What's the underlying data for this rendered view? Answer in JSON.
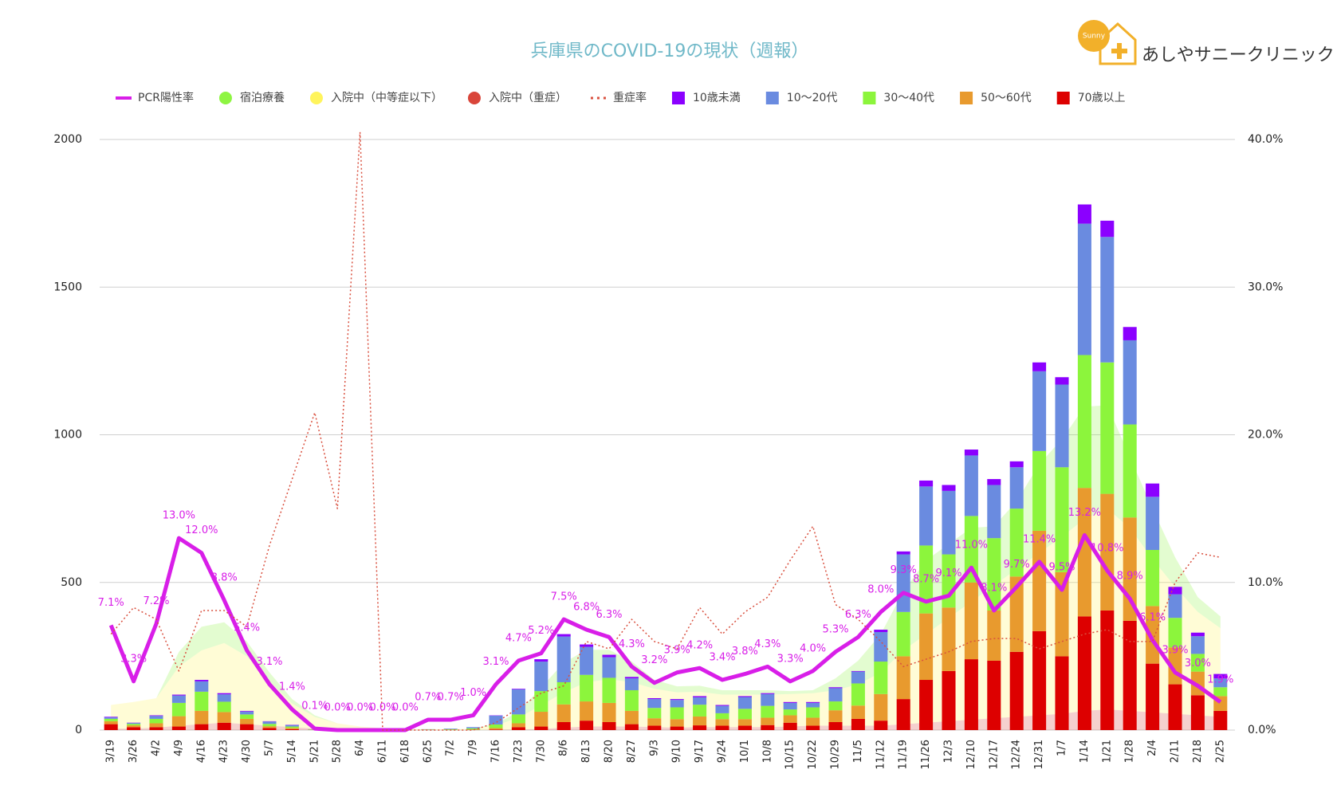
{
  "header": {
    "logo_text": "あしやサニークリニック",
    "logo_mark": "Sunny"
  },
  "chart_data": {
    "type": "combo",
    "title": "兵庫県のCOVID-19の現状（週報）",
    "categories": [
      "3/19",
      "3/26",
      "4/2",
      "4/9",
      "4/16",
      "4/23",
      "4/30",
      "5/7",
      "5/14",
      "5/21",
      "5/28",
      "6/4",
      "6/11",
      "6/18",
      "6/25",
      "7/2",
      "7/9",
      "7/16",
      "7/23",
      "7/30",
      "8/6",
      "8/13",
      "8/20",
      "8/27",
      "9/3",
      "9/10",
      "9/17",
      "9/24",
      "10/1",
      "10/8",
      "10/15",
      "10/22",
      "10/29",
      "11/5",
      "11/12",
      "11/19",
      "11/26",
      "12/3",
      "12/10",
      "12/17",
      "12/24",
      "12/31",
      "1/7",
      "1/14",
      "1/21",
      "1/28",
      "2/4",
      "2/11",
      "2/18",
      "2/25"
    ],
    "ylim": [
      0,
      2000
    ],
    "yticks": [
      0,
      500,
      1000,
      1500,
      2000
    ],
    "y2lim": [
      0,
      40
    ],
    "y2ticks": [
      {
        "value": 0,
        "label": "0.0%"
      },
      {
        "value": 10,
        "label": "10.0%"
      },
      {
        "value": 20,
        "label": "20.0%"
      },
      {
        "value": 30,
        "label": "30.0%"
      },
      {
        "value": 40,
        "label": "40.0%"
      }
    ],
    "grid": true,
    "legend": "top",
    "series": [
      {
        "name": "PCR陽性率",
        "kind": "line",
        "axis": "y2",
        "color": "#d81ee8",
        "values": [
          7.1,
          3.3,
          7.2,
          13.0,
          12.0,
          8.8,
          5.4,
          3.1,
          1.4,
          0.1,
          0.0,
          0.0,
          0.0,
          0.0,
          0.7,
          0.7,
          1.0,
          3.1,
          4.7,
          5.2,
          7.5,
          6.8,
          6.3,
          4.3,
          3.2,
          3.9,
          4.2,
          3.4,
          3.8,
          4.3,
          3.3,
          4.0,
          5.3,
          6.3,
          8.0,
          9.3,
          8.7,
          9.1,
          11.0,
          8.1,
          9.7,
          11.4,
          9.5,
          13.2,
          10.8,
          8.9,
          6.1,
          3.9,
          3.0,
          1.9
        ],
        "value_labels": [
          "7.1%",
          "3.3%",
          "7.2%",
          "13.0%",
          "12.0%",
          "8.8%",
          "5.4%",
          "3.1%",
          "1.4%",
          "0.1%",
          "0.0%",
          "0.0%",
          "0.0%",
          "0.0%",
          "0.7%",
          "0.7%",
          "1.0%",
          "3.1%",
          "4.7%",
          "5.2%",
          "7.5%",
          "6.8%",
          "6.3%",
          "4.3%",
          "3.2%",
          "3.9%",
          "4.2%",
          "3.4%",
          "3.8%",
          "4.3%",
          "3.3%",
          "4.0%",
          "5.3%",
          "6.3%",
          "8.0%",
          "9.3%",
          "8.7%",
          "9.1%",
          "11.0%",
          "8.1%",
          "9.7%",
          "11.4%",
          "9.5%",
          "13.2%",
          "10.8%",
          "8.9%",
          "6.1%",
          "3.9%",
          "3.0%",
          "1.9%"
        ]
      },
      {
        "name": "宿泊療養",
        "kind": "area",
        "color": "#8ef542",
        "values": [
          0,
          0,
          0,
          50,
          80,
          70,
          50,
          30,
          15,
          5,
          0,
          0,
          0,
          0,
          0,
          0,
          0,
          5,
          20,
          60,
          100,
          110,
          100,
          70,
          30,
          20,
          20,
          15,
          15,
          15,
          10,
          10,
          40,
          80,
          130,
          200,
          250,
          250,
          250,
          200,
          230,
          300,
          330,
          380,
          350,
          240,
          170,
          100,
          50,
          40
        ]
      },
      {
        "name": "入院中（中等症以下）",
        "kind": "area",
        "color": "#fff45c",
        "values": [
          80,
          90,
          100,
          200,
          250,
          270,
          230,
          150,
          80,
          40,
          20,
          10,
          5,
          3,
          3,
          3,
          5,
          15,
          40,
          80,
          120,
          150,
          160,
          150,
          130,
          120,
          120,
          110,
          110,
          110,
          110,
          110,
          120,
          140,
          180,
          250,
          300,
          350,
          400,
          450,
          500,
          550,
          600,
          650,
          680,
          620,
          520,
          430,
          350,
          300
        ]
      },
      {
        "name": "入院中（重症）",
        "kind": "area",
        "color": "#d9453a",
        "values": [
          5,
          5,
          8,
          15,
          20,
          25,
          20,
          15,
          10,
          5,
          3,
          2,
          1,
          0,
          0,
          0,
          0,
          1,
          2,
          4,
          8,
          12,
          12,
          12,
          10,
          8,
          10,
          10,
          10,
          10,
          12,
          15,
          15,
          15,
          15,
          20,
          25,
          30,
          35,
          40,
          45,
          50,
          55,
          65,
          70,
          65,
          60,
          55,
          50,
          45
        ]
      },
      {
        "name": "重症率",
        "kind": "dotted",
        "axis": "y2",
        "color": "#d9503f",
        "values": [
          6.5,
          8.3,
          7.5,
          4.0,
          8.1,
          8.1,
          7.0,
          12.5,
          17.0,
          21.5,
          15.0,
          40.5,
          0,
          0,
          0,
          0,
          0,
          0.5,
          1.5,
          2.5,
          3.0,
          6.0,
          5.5,
          7.5,
          6.0,
          5.5,
          8.3,
          6.5,
          8.0,
          9.0,
          11.5,
          13.8,
          8.5,
          7.5,
          6.0,
          4.3,
          4.8,
          5.3,
          6.0,
          6.2,
          6.2,
          5.5,
          6.0,
          6.5,
          6.8,
          6.0,
          6.0,
          10.0,
          12.0,
          11.7
        ]
      },
      {
        "name": "10歳未満",
        "kind": "bar",
        "color": "#8b00ff",
        "values": [
          2,
          1,
          2,
          3,
          5,
          4,
          2,
          1,
          1,
          0,
          0,
          0,
          0,
          0,
          0,
          0,
          0,
          1,
          2,
          8,
          8,
          8,
          8,
          5,
          3,
          3,
          4,
          3,
          3,
          3,
          3,
          3,
          3,
          2,
          8,
          10,
          20,
          20,
          20,
          20,
          20,
          30,
          25,
          65,
          55,
          45,
          45,
          25,
          12,
          15
        ]
      },
      {
        "name": "10～20代",
        "kind": "bar",
        "color": "#6a8be0",
        "values": [
          5,
          3,
          10,
          25,
          35,
          25,
          10,
          8,
          5,
          1,
          1,
          0,
          0,
          0,
          1,
          2,
          4,
          30,
          85,
          100,
          155,
          95,
          70,
          40,
          30,
          25,
          25,
          25,
          40,
          40,
          22,
          15,
          45,
          40,
          100,
          195,
          200,
          215,
          205,
          180,
          140,
          270,
          280,
          445,
          425,
          285,
          180,
          80,
          60,
          30
        ]
      },
      {
        "name": "30～40代",
        "kind": "bar",
        "color": "#8cf53c",
        "values": [
          8,
          5,
          15,
          45,
          65,
          35,
          15,
          8,
          5,
          1,
          1,
          1,
          0,
          1,
          1,
          2,
          4,
          12,
          30,
          70,
          75,
          90,
          85,
          70,
          35,
          40,
          40,
          20,
          35,
          40,
          20,
          35,
          30,
          75,
          110,
          150,
          230,
          180,
          225,
          245,
          230,
          270,
          355,
          450,
          445,
          315,
          190,
          100,
          60,
          30
        ]
      },
      {
        "name": "50～60代",
        "kind": "bar",
        "color": "#e89a2e",
        "values": [
          10,
          6,
          13,
          35,
          45,
          36,
          18,
          6,
          4,
          1,
          0,
          0,
          0,
          0,
          1,
          1,
          1,
          5,
          13,
          50,
          60,
          65,
          65,
          45,
          25,
          25,
          30,
          22,
          22,
          25,
          25,
          27,
          40,
          45,
          90,
          145,
          225,
          215,
          260,
          170,
          255,
          340,
          285,
          435,
          395,
          350,
          195,
          125,
          80,
          50
        ]
      },
      {
        "name": "70歳以上",
        "kind": "bar",
        "color": "#dd0000",
        "values": [
          20,
          10,
          10,
          12,
          20,
          25,
          20,
          7,
          3,
          0,
          0,
          0,
          0,
          0,
          0,
          0,
          1,
          2,
          10,
          12,
          27,
          32,
          27,
          20,
          15,
          12,
          16,
          15,
          15,
          17,
          25,
          15,
          27,
          38,
          32,
          105,
          170,
          200,
          240,
          235,
          265,
          335,
          250,
          385,
          405,
          370,
          225,
          155,
          118,
          65
        ]
      }
    ]
  }
}
